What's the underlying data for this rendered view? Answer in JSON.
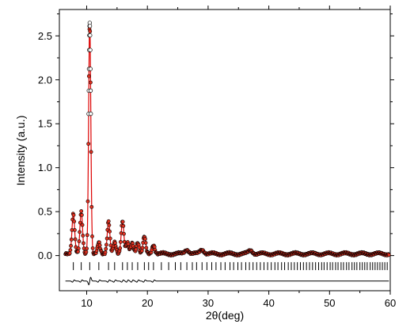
{
  "chart_data": {
    "type": "scatter",
    "title": "",
    "xlabel": "2θ(deg)",
    "ylabel": "Intensity (a.u.)",
    "xlim": [
      5.5,
      60
    ],
    "ylim": [
      -0.4,
      2.8
    ],
    "x_ticks": [
      10,
      20,
      30,
      40,
      50,
      60
    ],
    "y_ticks": [
      0.0,
      0.5,
      1.0,
      1.5,
      2.0,
      2.5
    ],
    "x_tick_labels": [
      "10",
      "20",
      "30",
      "40",
      "50",
      "60"
    ],
    "y_tick_labels": [
      "0.0",
      "0.5",
      "1.0",
      "1.5",
      "2.0",
      "2.5"
    ],
    "grid": false,
    "legend": "none",
    "baseline": 0.02,
    "peaks": [
      {
        "x": 7.8,
        "y": 0.48
      },
      {
        "x": 9.1,
        "y": 0.5
      },
      {
        "x": 10.5,
        "y": 2.65
      },
      {
        "x": 12.0,
        "y": 0.15
      },
      {
        "x": 13.6,
        "y": 0.39
      },
      {
        "x": 14.6,
        "y": 0.15
      },
      {
        "x": 15.9,
        "y": 0.4
      },
      {
        "x": 16.7,
        "y": 0.15
      },
      {
        "x": 17.5,
        "y": 0.14
      },
      {
        "x": 18.4,
        "y": 0.15
      },
      {
        "x": 19.5,
        "y": 0.22
      },
      {
        "x": 21.0,
        "y": 0.12
      },
      {
        "x": 26.5,
        "y": 0.07
      },
      {
        "x": 29.0,
        "y": 0.07
      },
      {
        "x": 37.0,
        "y": 0.06
      }
    ],
    "bragg_positions_y": -0.12,
    "bragg_positions": [
      7.8,
      9.1,
      10.5,
      12.0,
      13.6,
      14.6,
      15.9,
      16.7,
      17.5,
      18.4,
      19.5,
      20.2,
      21.0,
      22.3,
      23.5,
      24.6,
      25.5,
      26.5,
      27.4,
      28.1,
      29.0,
      29.8,
      30.6,
      31.3,
      32.1,
      32.8,
      33.6,
      34.2,
      34.9,
      35.5,
      36.2,
      36.8,
      37.4,
      38.0,
      38.6,
      39.2,
      39.8,
      40.4,
      41.0,
      41.5,
      42.1,
      42.6,
      43.2,
      43.7,
      44.2,
      44.7,
      45.2,
      45.7,
      46.2,
      46.7,
      47.2,
      47.7,
      48.2,
      48.7,
      49.1,
      49.6,
      50.1,
      50.5,
      51.0,
      51.4,
      51.9,
      52.3,
      52.8,
      53.2,
      53.7,
      54.1,
      54.5,
      55.0,
      55.4,
      55.8,
      56.2,
      56.7,
      57.1,
      57.5,
      57.9,
      58.3,
      58.7,
      59.1,
      59.5
    ],
    "difference_baseline": -0.29,
    "colors": {
      "observed_marker": "#000000",
      "observed_fill": "#e03020",
      "calculated_line": "#dd0000",
      "difference_line": "#000000",
      "axis": "#000000"
    }
  }
}
